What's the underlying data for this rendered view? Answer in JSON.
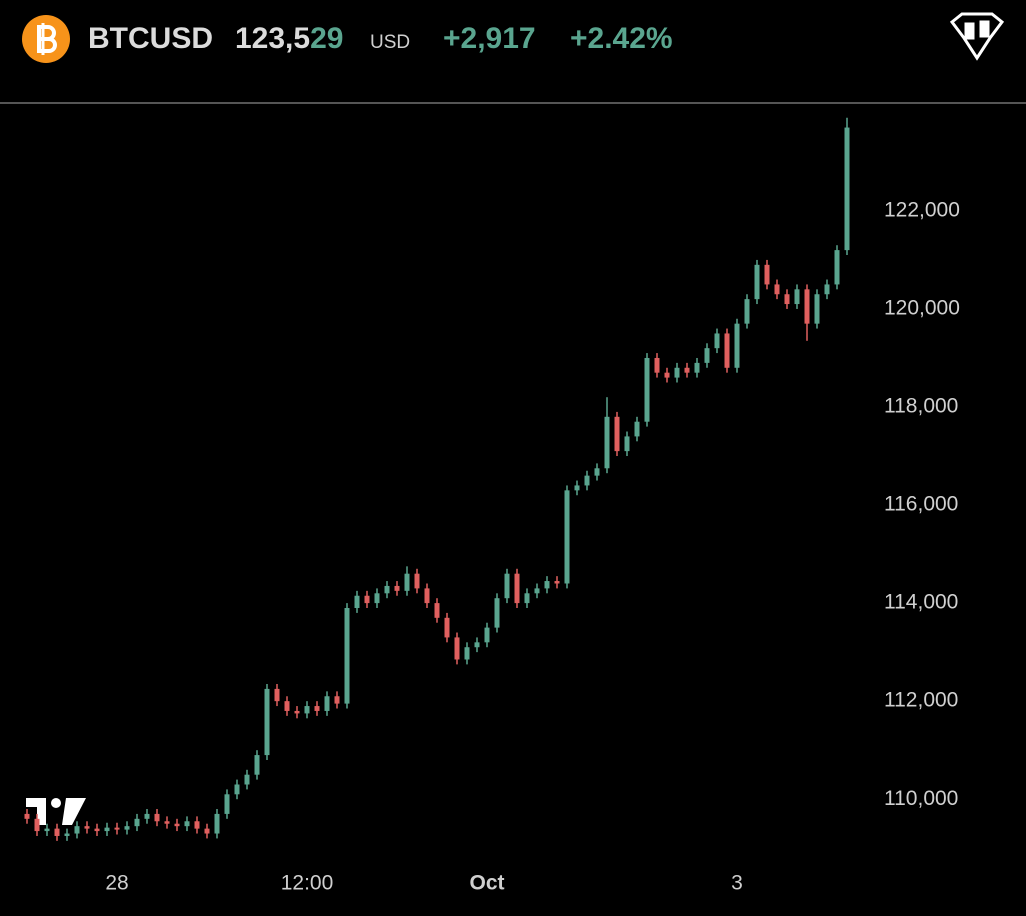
{
  "header": {
    "symbol": "BTCUSD",
    "price": "123,529",
    "currency": "USD",
    "change": "+2,917",
    "change_percent": "+2.42%"
  },
  "chart_data": {
    "type": "candlestick",
    "up_color": "#5aa58f",
    "down_color": "#e0605f",
    "grid": false,
    "ylim": [
      108760,
      124160
    ],
    "yticks": [
      {
        "value": 110000,
        "label": "110,000"
      },
      {
        "value": 112000,
        "label": "112,000"
      },
      {
        "value": 114000,
        "label": "114,000"
      },
      {
        "value": 116000,
        "label": "116,000"
      },
      {
        "value": 118000,
        "label": "118,000"
      },
      {
        "value": 120000,
        "label": "120,000"
      },
      {
        "value": 122000,
        "label": "122,000"
      }
    ],
    "categories": [
      null,
      null,
      null,
      null,
      null,
      null,
      null,
      null,
      null,
      "28",
      null,
      null,
      null,
      null,
      null,
      null,
      null,
      null,
      null,
      null,
      null,
      null,
      null,
      null,
      null,
      null,
      null,
      null,
      "12:00",
      null,
      null,
      null,
      null,
      null,
      null,
      null,
      null,
      null,
      null,
      null,
      null,
      null,
      null,
      null,
      null,
      null,
      "Oct",
      null,
      null,
      null,
      null,
      null,
      null,
      null,
      null,
      null,
      null,
      null,
      null,
      null,
      null,
      null,
      null,
      null,
      null,
      null,
      null,
      null,
      null,
      null,
      null,
      "3",
      null,
      null,
      null,
      null,
      null,
      null,
      null,
      null,
      null,
      null,
      null
    ],
    "open": [
      109700,
      109600,
      109350,
      109400,
      109250,
      109300,
      109450,
      109400,
      109350,
      109420,
      109380,
      109450,
      109600,
      109700,
      109550,
      109500,
      109450,
      109550,
      109400,
      109300,
      109700,
      110100,
      110300,
      110500,
      110900,
      112250,
      112000,
      111800,
      111750,
      111900,
      111800,
      112100,
      111950,
      113900,
      114150,
      114000,
      114200,
      114350,
      114250,
      114600,
      114300,
      114000,
      113700,
      113300,
      112850,
      113100,
      113200,
      113500,
      114100,
      114600,
      114000,
      114200,
      114300,
      114450,
      114400,
      116300,
      116400,
      116600,
      116750,
      117800,
      117100,
      117400,
      117700,
      119000,
      118700,
      118600,
      118800,
      118700,
      118900,
      119200,
      119500,
      118800,
      119700,
      120200,
      120900,
      120500,
      120300,
      120100,
      120400,
      119700,
      120300,
      120500,
      121200
    ],
    "high": [
      109800,
      109700,
      109500,
      109500,
      109400,
      109550,
      109550,
      109500,
      109520,
      109520,
      109550,
      109700,
      109800,
      109800,
      109650,
      109600,
      109650,
      109650,
      109500,
      109800,
      110200,
      110400,
      110600,
      111000,
      112350,
      112350,
      112100,
      111900,
      112000,
      112000,
      112200,
      112200,
      114000,
      114250,
      114250,
      114300,
      114450,
      114450,
      114750,
      114700,
      114400,
      114100,
      113800,
      113400,
      113200,
      113300,
      113600,
      114200,
      114700,
      114700,
      114300,
      114400,
      114550,
      114550,
      116400,
      116500,
      116700,
      116850,
      118200,
      117900,
      117500,
      117800,
      119100,
      119100,
      118800,
      118900,
      118900,
      119000,
      119300,
      119600,
      119600,
      119800,
      120300,
      121000,
      121000,
      120600,
      120400,
      120500,
      120500,
      120400,
      120600,
      121300,
      123900
    ],
    "low": [
      109500,
      109250,
      109250,
      109150,
      109150,
      109200,
      109300,
      109250,
      109250,
      109280,
      109280,
      109350,
      109500,
      109450,
      109400,
      109350,
      109350,
      109300,
      109200,
      109200,
      109600,
      110000,
      110200,
      110400,
      110800,
      111900,
      111700,
      111650,
      111650,
      111700,
      111700,
      111850,
      111850,
      113800,
      113900,
      113900,
      114100,
      114150,
      114150,
      114200,
      113900,
      113600,
      113200,
      112750,
      112750,
      113000,
      113100,
      113400,
      114000,
      113900,
      113900,
      114100,
      114200,
      114300,
      114300,
      116200,
      116300,
      116500,
      116650,
      117000,
      117000,
      117300,
      117600,
      118600,
      118500,
      118500,
      118600,
      118600,
      118800,
      119100,
      118700,
      118700,
      119600,
      120100,
      120400,
      120200,
      120000,
      120000,
      119350,
      119600,
      120200,
      120400,
      121100
    ],
    "close": [
      109600,
      109350,
      109400,
      109250,
      109300,
      109450,
      109400,
      109350,
      109420,
      109380,
      109450,
      109600,
      109700,
      109550,
      109500,
      109450,
      109550,
      109400,
      109300,
      109700,
      110100,
      110300,
      110500,
      110900,
      112250,
      112000,
      111800,
      111750,
      111900,
      111800,
      112100,
      111950,
      113900,
      114150,
      114000,
      114200,
      114350,
      114250,
      114600,
      114300,
      114000,
      113700,
      113300,
      112850,
      113100,
      113200,
      113500,
      114100,
      114600,
      114000,
      114200,
      114300,
      114450,
      114400,
      116300,
      116400,
      116600,
      116750,
      117800,
      117100,
      117400,
      117700,
      119000,
      118700,
      118600,
      118800,
      118700,
      118900,
      119200,
      119500,
      118800,
      119700,
      120200,
      120900,
      120500,
      120300,
      120100,
      120400,
      119700,
      120300,
      120500,
      121200,
      123700
    ]
  }
}
